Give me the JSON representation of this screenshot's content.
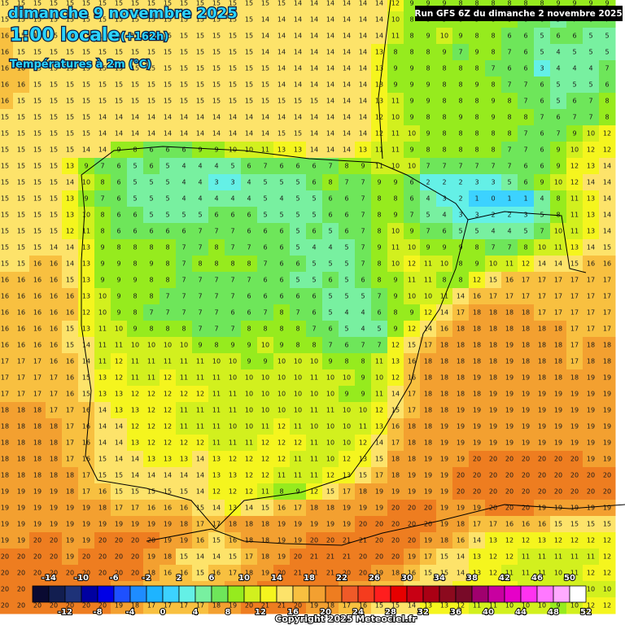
{
  "header": {
    "date": "dimanche 9 novembre 2025",
    "time": "1:00 locale",
    "offset": "(+162h)",
    "variable": "Températures à 2m (°C)",
    "run": "Run GFS 6Z du dimanche 2 novembre 2025"
  },
  "grid": {
    "rows": [
      [
        15,
        15,
        15,
        15,
        15,
        15,
        15,
        15,
        15,
        15,
        15,
        15,
        15,
        15,
        15,
        15,
        15,
        15,
        14,
        14,
        14,
        14,
        14,
        14,
        12,
        9,
        9,
        9,
        8,
        8,
        8,
        8,
        8,
        8,
        9,
        9,
        9,
        9
      ],
      [
        15,
        15,
        15,
        15,
        15,
        15,
        15,
        15,
        15,
        15,
        15,
        15,
        15,
        15,
        15,
        15,
        14,
        14,
        14,
        14,
        14,
        14,
        14,
        14,
        10,
        8,
        8,
        9,
        8,
        9,
        8,
        8,
        6,
        6,
        5,
        7,
        6,
        7
      ],
      [
        16,
        15,
        15,
        15,
        15,
        15,
        15,
        15,
        15,
        15,
        15,
        15,
        15,
        15,
        15,
        15,
        14,
        14,
        14,
        14,
        14,
        14,
        14,
        14,
        11,
        8,
        9,
        10,
        9,
        8,
        8,
        6,
        6,
        5,
        6,
        6,
        5,
        5
      ],
      [
        16,
        15,
        15,
        15,
        15,
        15,
        15,
        15,
        15,
        15,
        15,
        15,
        15,
        15,
        15,
        15,
        14,
        14,
        14,
        14,
        14,
        14,
        14,
        13,
        8,
        8,
        8,
        9,
        7,
        9,
        8,
        7,
        6,
        5,
        4,
        5,
        5,
        5
      ],
      [
        16,
        16,
        15,
        15,
        15,
        15,
        15,
        15,
        15,
        15,
        15,
        15,
        15,
        15,
        15,
        15,
        15,
        14,
        14,
        14,
        14,
        14,
        14,
        13,
        9,
        9,
        8,
        8,
        8,
        8,
        7,
        6,
        6,
        3,
        4,
        4,
        4,
        7
      ],
      [
        16,
        16,
        15,
        15,
        15,
        15,
        15,
        15,
        15,
        15,
        15,
        15,
        15,
        15,
        15,
        15,
        15,
        14,
        14,
        14,
        14,
        14,
        14,
        13,
        9,
        9,
        9,
        8,
        8,
        9,
        8,
        7,
        7,
        6,
        5,
        5,
        5,
        6
      ],
      [
        16,
        15,
        15,
        15,
        15,
        15,
        15,
        15,
        15,
        15,
        15,
        15,
        15,
        15,
        15,
        15,
        15,
        15,
        15,
        15,
        14,
        14,
        14,
        13,
        11,
        9,
        9,
        8,
        8,
        8,
        9,
        8,
        7,
        6,
        5,
        6,
        7,
        8
      ],
      [
        15,
        15,
        15,
        15,
        15,
        15,
        14,
        14,
        14,
        14,
        14,
        14,
        14,
        14,
        14,
        14,
        14,
        14,
        14,
        14,
        14,
        14,
        14,
        12,
        10,
        9,
        8,
        8,
        9,
        8,
        9,
        8,
        8,
        7,
        6,
        7,
        7,
        8
      ],
      [
        15,
        15,
        15,
        15,
        15,
        15,
        14,
        14,
        14,
        14,
        14,
        14,
        14,
        14,
        14,
        14,
        14,
        15,
        15,
        14,
        14,
        14,
        14,
        12,
        11,
        10,
        9,
        8,
        8,
        8,
        8,
        8,
        7,
        6,
        7,
        9,
        10,
        12
      ],
      [
        15,
        15,
        15,
        15,
        15,
        14,
        14,
        9,
        8,
        6,
        6,
        6,
        9,
        9,
        10,
        10,
        11,
        13,
        13,
        14,
        14,
        14,
        13,
        11,
        11,
        9,
        8,
        8,
        8,
        8,
        8,
        7,
        7,
        6,
        9,
        10,
        12,
        12
      ],
      [
        15,
        15,
        15,
        15,
        13,
        9,
        7,
        6,
        5,
        6,
        5,
        4,
        4,
        4,
        5,
        6,
        7,
        6,
        6,
        6,
        7,
        8,
        9,
        11,
        10,
        10,
        7,
        7,
        7,
        7,
        7,
        7,
        6,
        6,
        9,
        12,
        13,
        14
      ],
      [
        15,
        15,
        15,
        15,
        14,
        10,
        8,
        6,
        5,
        5,
        5,
        4,
        4,
        3,
        3,
        4,
        5,
        5,
        5,
        6,
        8,
        7,
        7,
        9,
        9,
        6,
        2,
        2,
        2,
        3,
        3,
        5,
        6,
        9,
        10,
        12,
        14,
        14
      ],
      [
        15,
        15,
        15,
        15,
        13,
        9,
        7,
        6,
        5,
        5,
        5,
        4,
        4,
        4,
        4,
        4,
        5,
        4,
        5,
        5,
        6,
        6,
        7,
        8,
        8,
        6,
        4,
        3,
        2,
        1,
        0,
        1,
        1,
        4,
        8,
        11,
        13,
        14
      ],
      [
        15,
        15,
        15,
        15,
        13,
        10,
        8,
        6,
        6,
        5,
        5,
        5,
        5,
        6,
        6,
        6,
        5,
        5,
        5,
        5,
        6,
        6,
        7,
        8,
        9,
        7,
        5,
        4,
        3,
        3,
        2,
        2,
        3,
        5,
        8,
        11,
        13,
        14
      ],
      [
        15,
        15,
        15,
        15,
        12,
        11,
        8,
        6,
        6,
        6,
        6,
        6,
        7,
        7,
        7,
        6,
        6,
        6,
        5,
        6,
        5,
        6,
        7,
        8,
        10,
        9,
        7,
        6,
        5,
        5,
        4,
        4,
        5,
        7,
        10,
        11,
        13,
        14
      ],
      [
        15,
        15,
        15,
        14,
        14,
        13,
        9,
        8,
        8,
        8,
        8,
        7,
        7,
        8,
        7,
        7,
        6,
        6,
        5,
        4,
        4,
        5,
        7,
        9,
        11,
        10,
        9,
        9,
        9,
        8,
        7,
        7,
        8,
        10,
        11,
        13,
        14,
        15
      ],
      [
        15,
        15,
        16,
        16,
        14,
        13,
        9,
        9,
        8,
        9,
        8,
        7,
        8,
        8,
        8,
        8,
        7,
        6,
        6,
        5,
        5,
        5,
        7,
        8,
        10,
        12,
        11,
        10,
        8,
        9,
        10,
        11,
        12,
        14,
        14,
        15,
        16,
        16
      ],
      [
        16,
        16,
        16,
        16,
        15,
        13,
        9,
        9,
        9,
        8,
        8,
        7,
        7,
        7,
        7,
        7,
        6,
        6,
        5,
        5,
        6,
        5,
        6,
        8,
        9,
        11,
        11,
        8,
        8,
        12,
        15,
        16,
        17,
        17,
        17,
        17,
        17,
        17
      ],
      [
        16,
        16,
        16,
        16,
        16,
        13,
        10,
        9,
        8,
        8,
        7,
        7,
        7,
        7,
        7,
        6,
        6,
        6,
        6,
        6,
        5,
        5,
        5,
        7,
        9,
        10,
        10,
        11,
        14,
        16,
        17,
        17,
        17,
        17,
        17,
        17,
        17,
        17
      ],
      [
        16,
        16,
        16,
        16,
        16,
        12,
        10,
        9,
        8,
        7,
        7,
        7,
        7,
        7,
        6,
        6,
        7,
        8,
        7,
        6,
        5,
        4,
        4,
        6,
        8,
        9,
        12,
        14,
        17,
        18,
        18,
        18,
        18,
        17,
        17,
        17,
        17,
        17
      ],
      [
        16,
        16,
        16,
        16,
        15,
        13,
        11,
        10,
        9,
        8,
        8,
        8,
        7,
        7,
        7,
        8,
        8,
        8,
        8,
        7,
        6,
        5,
        4,
        5,
        9,
        12,
        14,
        16,
        18,
        18,
        18,
        18,
        18,
        18,
        18,
        17,
        17,
        17
      ],
      [
        16,
        16,
        16,
        16,
        15,
        14,
        11,
        11,
        10,
        10,
        10,
        10,
        9,
        8,
        9,
        9,
        10,
        9,
        8,
        8,
        7,
        6,
        7,
        7,
        12,
        15,
        17,
        18,
        18,
        18,
        18,
        19,
        18,
        18,
        18,
        17,
        18,
        18
      ],
      [
        17,
        17,
        17,
        16,
        16,
        14,
        11,
        12,
        11,
        11,
        11,
        11,
        11,
        10,
        10,
        9,
        9,
        10,
        10,
        10,
        9,
        8,
        8,
        11,
        13,
        16,
        18,
        18,
        18,
        18,
        18,
        19,
        18,
        18,
        18,
        17,
        18,
        18
      ],
      [
        17,
        17,
        17,
        17,
        16,
        15,
        13,
        12,
        11,
        11,
        12,
        11,
        11,
        11,
        10,
        10,
        10,
        10,
        10,
        11,
        10,
        10,
        9,
        10,
        12,
        16,
        18,
        18,
        18,
        19,
        18,
        19,
        19,
        18,
        18,
        18,
        19,
        19
      ],
      [
        17,
        17,
        17,
        17,
        16,
        15,
        13,
        13,
        12,
        12,
        12,
        12,
        12,
        11,
        11,
        10,
        10,
        10,
        10,
        10,
        10,
        9,
        9,
        11,
        14,
        17,
        18,
        18,
        18,
        18,
        19,
        19,
        19,
        19,
        19,
        19,
        19,
        19
      ],
      [
        18,
        18,
        18,
        17,
        17,
        16,
        14,
        13,
        13,
        12,
        12,
        11,
        11,
        11,
        11,
        10,
        10,
        10,
        10,
        11,
        11,
        10,
        10,
        12,
        15,
        17,
        18,
        18,
        19,
        19,
        19,
        19,
        19,
        19,
        19,
        19,
        19,
        19
      ],
      [
        18,
        18,
        18,
        18,
        17,
        16,
        14,
        14,
        12,
        12,
        12,
        11,
        11,
        11,
        10,
        10,
        11,
        12,
        11,
        10,
        10,
        10,
        11,
        13,
        16,
        18,
        18,
        19,
        19,
        19,
        19,
        19,
        19,
        19,
        19,
        19,
        19,
        19
      ],
      [
        18,
        18,
        18,
        18,
        17,
        16,
        14,
        14,
        13,
        12,
        12,
        12,
        12,
        11,
        11,
        11,
        12,
        12,
        12,
        11,
        10,
        10,
        12,
        14,
        17,
        18,
        18,
        19,
        19,
        19,
        19,
        19,
        19,
        19,
        19,
        19,
        19,
        19
      ],
      [
        18,
        18,
        18,
        18,
        17,
        16,
        15,
        14,
        14,
        13,
        13,
        13,
        14,
        13,
        12,
        12,
        12,
        12,
        11,
        11,
        10,
        12,
        13,
        15,
        18,
        18,
        19,
        19,
        19,
        20,
        20,
        20,
        20,
        20,
        20,
        20,
        19,
        19
      ],
      [
        18,
        18,
        18,
        18,
        18,
        17,
        15,
        15,
        14,
        14,
        14,
        14,
        14,
        13,
        13,
        12,
        12,
        11,
        11,
        11,
        12,
        13,
        15,
        17,
        18,
        19,
        19,
        19,
        20,
        20,
        20,
        20,
        20,
        20,
        20,
        20,
        20,
        20
      ],
      [
        19,
        19,
        19,
        19,
        18,
        17,
        16,
        15,
        15,
        15,
        15,
        15,
        14,
        12,
        12,
        12,
        11,
        8,
        9,
        12,
        15,
        17,
        18,
        19,
        19,
        19,
        19,
        19,
        20,
        20,
        20,
        20,
        20,
        20,
        20,
        20,
        20,
        20
      ],
      [
        19,
        19,
        19,
        19,
        19,
        19,
        18,
        17,
        17,
        16,
        16,
        16,
        15,
        14,
        13,
        14,
        15,
        16,
        17,
        18,
        18,
        19,
        19,
        19,
        20,
        20,
        20,
        19,
        19,
        19,
        20,
        20,
        20,
        19,
        19,
        19,
        19,
        19
      ],
      [
        19,
        19,
        19,
        19,
        19,
        19,
        19,
        19,
        19,
        19,
        19,
        18,
        17,
        17,
        18,
        18,
        18,
        19,
        19,
        19,
        19,
        19,
        20,
        20,
        20,
        20,
        20,
        19,
        18,
        17,
        17,
        16,
        16,
        16,
        15,
        15,
        15,
        15
      ],
      [
        19,
        19,
        20,
        20,
        19,
        19,
        20,
        20,
        20,
        20,
        19,
        19,
        16,
        15,
        16,
        18,
        18,
        19,
        19,
        20,
        20,
        21,
        21,
        20,
        20,
        20,
        19,
        18,
        16,
        14,
        13,
        12,
        12,
        13,
        12,
        12,
        12,
        12
      ],
      [
        20,
        20,
        20,
        20,
        19,
        20,
        20,
        20,
        20,
        19,
        18,
        15,
        14,
        14,
        15,
        17,
        18,
        19,
        20,
        21,
        21,
        21,
        20,
        20,
        20,
        19,
        17,
        15,
        14,
        13,
        12,
        12,
        11,
        11,
        11,
        11,
        11,
        12
      ],
      [
        20,
        20,
        20,
        20,
        20,
        20,
        20,
        20,
        20,
        18,
        16,
        16,
        15,
        16,
        17,
        18,
        19,
        20,
        21,
        21,
        21,
        20,
        20,
        19,
        18,
        16,
        15,
        15,
        14,
        13,
        12,
        11,
        11,
        11,
        10,
        11,
        12,
        12
      ],
      [
        20,
        20,
        20,
        20,
        20,
        20,
        20,
        19,
        18,
        17,
        16,
        16,
        17,
        17,
        18,
        19,
        20,
        21,
        21,
        20,
        20,
        19,
        18,
        17,
        16,
        15,
        14,
        14,
        13,
        12,
        12,
        12,
        11,
        11,
        10,
        10,
        10,
        10
      ],
      [
        20,
        20,
        20,
        20,
        20,
        20,
        20,
        19,
        18,
        17,
        17,
        17,
        17,
        18,
        19,
        20,
        21,
        21,
        20,
        19,
        18,
        17,
        16,
        15,
        15,
        14,
        13,
        13,
        12,
        11,
        11,
        10,
        10,
        10,
        9,
        10,
        12,
        12
      ]
    ]
  },
  "legend": {
    "ticks": [
      -14,
      -12,
      -10,
      -8,
      -6,
      -4,
      -2,
      0,
      2,
      4,
      6,
      8,
      10,
      12,
      14,
      16,
      18,
      20,
      22,
      24,
      26,
      28,
      30,
      32,
      34,
      36,
      38,
      40,
      42,
      44,
      46,
      48,
      50,
      52
    ],
    "colors": [
      "#0a0a32",
      "#121e50",
      "#1e3278",
      "#0000a0",
      "#0000e6",
      "#1e50ff",
      "#1e8cff",
      "#1eb4ff",
      "#3cd2ff",
      "#64f0e6",
      "#78f0a0",
      "#6ee65a",
      "#96eb1e",
      "#d2f01e",
      "#f5f51e",
      "#fde36a",
      "#f8c040",
      "#f3a030",
      "#ee7d20",
      "#f05a28",
      "#f53c1e",
      "#ff1e1e",
      "#e60000",
      "#c80014",
      "#aa0014",
      "#8c0a1e",
      "#780a28",
      "#a0006e",
      "#c800a0",
      "#e600c8",
      "#ff32f0",
      "#ff78ff",
      "#ffaaff",
      "#ffffff"
    ]
  },
  "footer": "Copyright 2025 Meteociel.fr"
}
